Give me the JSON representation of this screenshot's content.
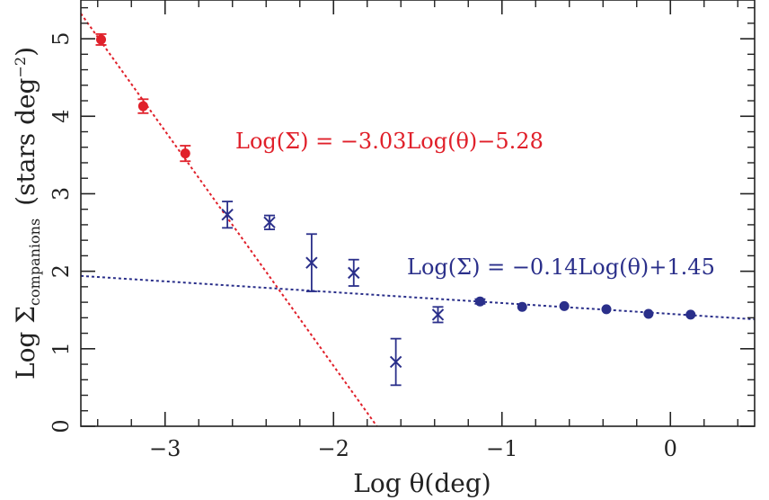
{
  "chart_data": {
    "type": "scatter",
    "xlabel": "Log θ(deg)",
    "ylabel_main": "Log Σ",
    "ylabel_sub": "companions",
    "ylabel_unit": "(stars deg",
    "ylabel_unit_sup": "−2",
    "ylabel_unit_close": ")",
    "xlim": [
      -3.5,
      0.5
    ],
    "ylim": [
      0,
      5.5
    ],
    "x_ticks": [
      -3,
      -2,
      -1,
      0
    ],
    "x_tick_labels": [
      "−3",
      "−2",
      "−1",
      "0"
    ],
    "y_ticks": [
      0,
      1,
      2,
      3,
      4,
      5
    ],
    "y_tick_labels": [
      "0",
      "1",
      "2",
      "3",
      "4",
      "5"
    ],
    "grid": false,
    "series": [
      {
        "marker": "circle",
        "color": "#e0202a",
        "points": [
          {
            "x": -3.38,
            "y": 4.99,
            "err": 0.07
          },
          {
            "x": -3.13,
            "y": 4.13,
            "err": 0.09
          },
          {
            "x": -2.88,
            "y": 3.52,
            "err": 0.1
          }
        ]
      },
      {
        "marker": "cross",
        "color": "#2a2f8a",
        "points": [
          {
            "x": -2.63,
            "y": 2.73,
            "err": 0.17
          },
          {
            "x": -2.38,
            "y": 2.63,
            "err": 0.09
          },
          {
            "x": -2.13,
            "y": 2.11,
            "err": 0.37
          },
          {
            "x": -1.88,
            "y": 1.98,
            "err": 0.17
          },
          {
            "x": -1.63,
            "y": 0.83,
            "err": 0.3
          },
          {
            "x": -1.38,
            "y": 1.44,
            "err": 0.1
          }
        ]
      },
      {
        "marker": "circle",
        "color": "#2a2f8a",
        "points": [
          {
            "x": -1.13,
            "y": 1.61,
            "err": 0.03
          },
          {
            "x": -0.88,
            "y": 1.54,
            "err": 0.01
          },
          {
            "x": -0.63,
            "y": 1.55,
            "err": 0.01
          },
          {
            "x": -0.38,
            "y": 1.51,
            "err": 0.01
          },
          {
            "x": -0.13,
            "y": 1.45,
            "err": 0.01
          },
          {
            "x": 0.12,
            "y": 1.44,
            "err": 0.01
          }
        ]
      }
    ],
    "fits": [
      {
        "slope": -3.03,
        "intercept": -5.28,
        "color": "#e0202a",
        "label": "Log(Σ) = −3.03Log(θ)−5.28"
      },
      {
        "slope": -0.14,
        "intercept": 1.45,
        "color": "#2a2f8a",
        "label": "Log(Σ) = −0.14Log(θ)+1.45"
      }
    ]
  }
}
